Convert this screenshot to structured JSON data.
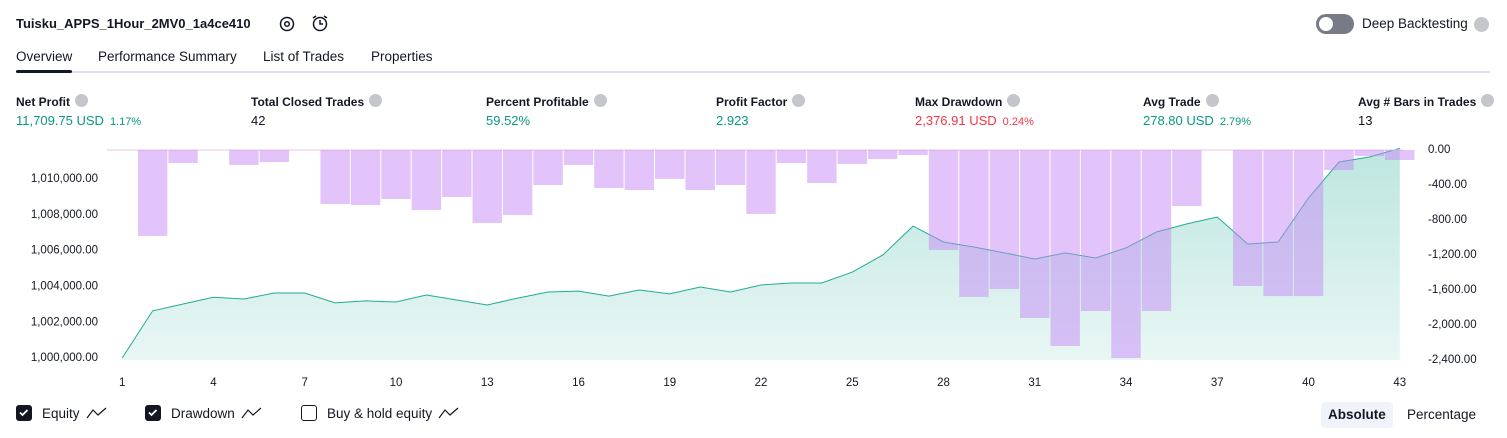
{
  "header": {
    "title": "Tuisku_APPS_1Hour_2MV0_1a4ce410",
    "toggle": {
      "label": "Deep Backtesting",
      "on": false
    }
  },
  "tabs": {
    "items": [
      "Overview",
      "Performance Summary",
      "List of Trades",
      "Properties"
    ],
    "active": 0
  },
  "metrics": [
    {
      "label": "Net Profit",
      "value": "11,709.75 USD",
      "percent": "1.17%",
      "color": "#089981"
    },
    {
      "label": "Total Closed Trades",
      "value": "42",
      "color": "#131722"
    },
    {
      "label": "Percent Profitable",
      "value": "59.52%",
      "color": "#089981"
    },
    {
      "label": "Profit Factor",
      "value": "2.923",
      "color": "#089981"
    },
    {
      "label": "Max Drawdown",
      "value": "2,376.91 USD",
      "percent": "0.24%",
      "color": "#f23645"
    },
    {
      "label": "Avg Trade",
      "value": "278.80 USD",
      "percent": "2.79%",
      "color": "#089981"
    },
    {
      "label": "Avg # Bars in Trades",
      "value": "13",
      "color": "#131722"
    }
  ],
  "chart_data": {
    "type": "bar-line",
    "x": [
      1,
      2,
      3,
      4,
      5,
      6,
      7,
      8,
      9,
      10,
      11,
      12,
      13,
      14,
      15,
      16,
      17,
      18,
      19,
      20,
      21,
      22,
      23,
      24,
      25,
      26,
      27,
      28,
      29,
      30,
      31,
      32,
      33,
      34,
      35,
      36,
      37,
      38,
      39,
      40,
      41,
      42,
      43
    ],
    "xlim": [
      0.5,
      43.5
    ],
    "xticks": [
      1,
      4,
      7,
      10,
      13,
      16,
      19,
      22,
      25,
      28,
      31,
      34,
      37,
      40,
      43
    ],
    "ylim": [
      999890,
      1011620
    ],
    "yticks": [
      {
        "value": 1000000,
        "label": "1,000,000.00"
      },
      {
        "value": 1002000,
        "label": "1,002,000.00"
      },
      {
        "value": 1004000,
        "label": "1,004,000.00"
      },
      {
        "value": 1006000,
        "label": "1,006,000.00"
      },
      {
        "value": 1008000,
        "label": "1,008,000.00"
      },
      {
        "value": 1010000,
        "label": "1,010,000.00"
      }
    ],
    "y2lim": [
      -2400,
      0
    ],
    "y2ticks": [
      {
        "value": 0,
        "label": "0.00"
      },
      {
        "value": -400,
        "label": "-400.00"
      },
      {
        "value": -800,
        "label": "-800.00"
      },
      {
        "value": -1200,
        "label": "-1,200.00"
      },
      {
        "value": -1600,
        "label": "-1,600.00"
      },
      {
        "value": -2000,
        "label": "-2,000.00"
      },
      {
        "value": -2400,
        "label": "-2,400.00"
      }
    ],
    "series": [
      {
        "name": "Equity",
        "kind": "area",
        "checked": true,
        "color": "#22ab94",
        "values": [
          1000000,
          1002630,
          1003020,
          1003400,
          1003300,
          1003630,
          1003630,
          1003080,
          1003190,
          1003130,
          1003520,
          1003240,
          1002960,
          1003350,
          1003690,
          1003740,
          1003460,
          1003800,
          1003580,
          1003970,
          1003690,
          1004080,
          1004190,
          1004190,
          1004800,
          1005750,
          1007370,
          1006480,
          1006200,
          1005870,
          1005530,
          1005870,
          1005590,
          1006150,
          1007040,
          1007490,
          1007880,
          1006370,
          1006480,
          1008940,
          1010950,
          1011230,
          1011710
        ]
      },
      {
        "name": "Drawdown",
        "kind": "bar",
        "axis": "y2",
        "checked": true,
        "color": "#c58af5",
        "values": [
          0,
          -983,
          -149,
          0,
          -171,
          -137,
          0,
          -617,
          -629,
          -560,
          -686,
          -537,
          -834,
          -743,
          -400,
          -171,
          -434,
          -457,
          -331,
          -457,
          -400,
          -731,
          -149,
          -377,
          -160,
          -103,
          -57,
          -1143,
          -1680,
          -1589,
          -1920,
          -2240,
          -1840,
          -2376.91,
          -1840,
          -640,
          0,
          -1554,
          -1669,
          -1669,
          -229,
          -69,
          -114
        ]
      }
    ],
    "buy_hold": {
      "name": "Buy & hold equity",
      "checked": false
    }
  },
  "view_buttons": {
    "items": [
      "Absolute",
      "Percentage"
    ],
    "active": 0
  }
}
